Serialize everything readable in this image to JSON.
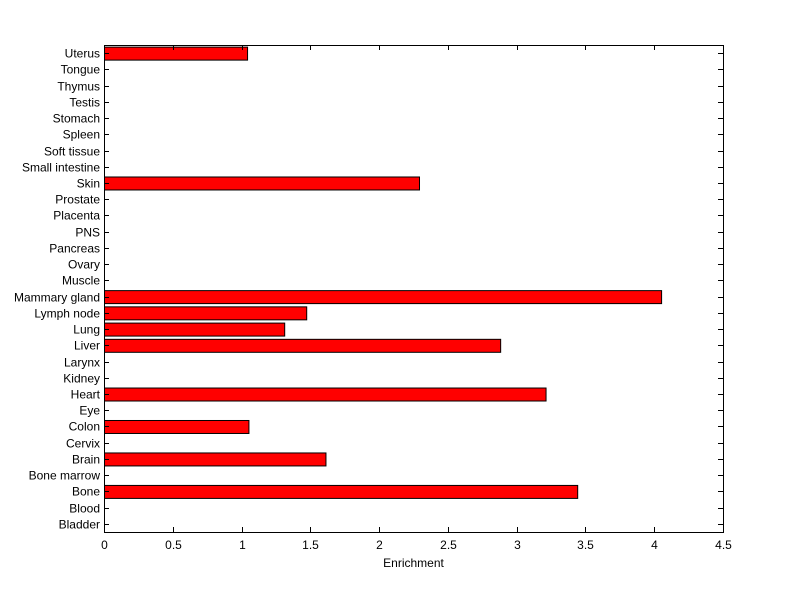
{
  "chart_data": {
    "type": "bar",
    "orientation": "horizontal",
    "title": "",
    "xlabel": "Enrichment",
    "ylabel": "",
    "xlim": [
      0,
      4.5
    ],
    "xticks": [
      "0",
      "0.5",
      "1",
      "1.5",
      "2",
      "2.5",
      "3",
      "3.5",
      "4",
      "4.5"
    ],
    "grid": false,
    "bar_color": "#ff0000",
    "bar_edge_color": "#000000",
    "categories": [
      "Bladder",
      "Blood",
      "Bone",
      "Bone marrow",
      "Brain",
      "Cervix",
      "Colon",
      "Eye",
      "Heart",
      "Kidney",
      "Larynx",
      "Liver",
      "Lung",
      "Lymph node",
      "Mammary gland",
      "Muscle",
      "Ovary",
      "Pancreas",
      "PNS",
      "Placenta",
      "Prostate",
      "Skin",
      "Small intestine",
      "Soft tissue",
      "Spleen",
      "Stomach",
      "Testis",
      "Thymus",
      "Tongue",
      "Uterus"
    ],
    "values": [
      0,
      0,
      3.44,
      0,
      1.61,
      0,
      1.05,
      0,
      3.21,
      0,
      0,
      2.88,
      1.31,
      1.47,
      4.05,
      0,
      0,
      0,
      0,
      0,
      0,
      2.29,
      0,
      0,
      0,
      0,
      0,
      0,
      0,
      1.04
    ]
  }
}
